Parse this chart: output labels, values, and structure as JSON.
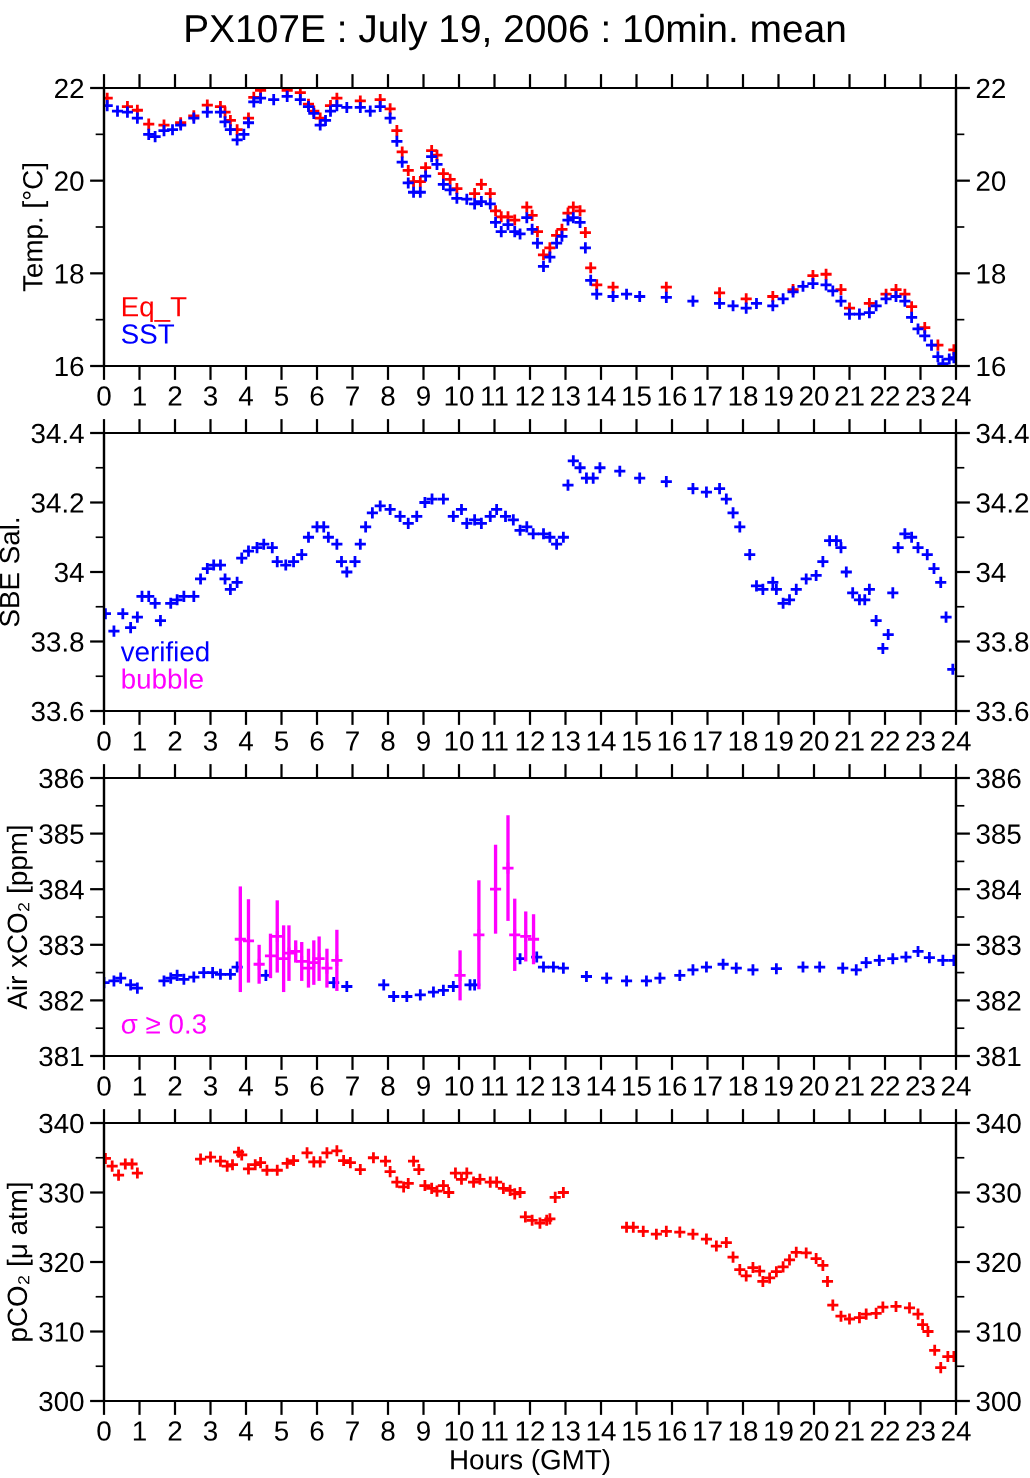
{
  "chart_data": [
    {
      "type": "scatter",
      "title": "PX107E : July 19, 2006 : 10min. mean",
      "ylabel": "Temp. [°C]",
      "marker": "cross",
      "legend": "bottom left",
      "grid": false,
      "xlim": [
        0,
        24
      ],
      "xticks": [
        0,
        1,
        2,
        3,
        4,
        5,
        6,
        7,
        8,
        9,
        10,
        11,
        12,
        13,
        14,
        15,
        16,
        17,
        18,
        19,
        20,
        21,
        22,
        23,
        24
      ],
      "ylim": [
        16,
        22
      ],
      "yticks": [
        16,
        18,
        20,
        22
      ],
      "y2lim": [
        16,
        22
      ],
      "y2ticks": [
        16,
        18,
        20,
        22
      ],
      "series": [
        {
          "name": "Eq_T",
          "color": "#ff0000",
          "x": [
            0.09,
            0.66,
            0.94,
            1.26,
            1.69,
            2.16,
            2.53,
            2.91,
            3.28,
            3.41,
            3.56,
            3.75,
            4.07,
            4.22,
            4.41,
            5.16,
            5.53,
            5.76,
            5.91,
            6.09,
            6.38,
            6.56,
            7.22,
            7.78,
            8.06,
            8.25,
            8.4,
            8.57,
            8.72,
            8.91,
            9.06,
            9.23,
            9.38,
            9.56,
            9.75,
            9.94,
            10.44,
            10.63,
            10.88,
            11.03,
            11.19,
            11.38,
            11.57,
            11.91,
            12.06,
            12.21,
            12.38,
            12.56,
            12.75,
            12.9,
            13.07,
            13.22,
            13.41,
            13.56,
            13.71,
            13.88,
            14.34,
            15.84,
            17.34,
            18.09,
            18.84,
            19.41,
            19.97,
            20.34,
            20.76,
            21.0,
            21.56,
            22.03,
            22.31,
            22.56,
            22.75,
            23.12,
            23.49,
            23.94
          ],
          "values": [
            21.78,
            21.6,
            21.52,
            21.22,
            21.2,
            21.25,
            21.4,
            21.63,
            21.6,
            21.48,
            21.3,
            21.1,
            21.35,
            21.8,
            21.95,
            21.95,
            21.9,
            21.65,
            21.5,
            21.35,
            21.62,
            21.78,
            21.72,
            21.75,
            21.55,
            21.08,
            20.62,
            20.22,
            19.98,
            19.98,
            20.28,
            20.65,
            20.55,
            20.15,
            20.03,
            19.83,
            19.72,
            19.92,
            19.72,
            19.35,
            19.22,
            19.22,
            19.15,
            19.43,
            19.25,
            18.9,
            18.4,
            18.55,
            18.82,
            18.95,
            19.3,
            19.43,
            19.35,
            18.88,
            18.12,
            17.75,
            17.7,
            17.7,
            17.58,
            17.45,
            17.5,
            17.65,
            17.95,
            17.98,
            17.65,
            17.25,
            17.35,
            17.55,
            17.65,
            17.55,
            17.28,
            16.83,
            16.45,
            16.35
          ]
        },
        {
          "name": "SST",
          "color": "#0000ff",
          "x": [
            0.09,
            0.38,
            0.66,
            0.94,
            1.26,
            1.44,
            1.69,
            1.93,
            2.16,
            2.53,
            2.91,
            3.28,
            3.41,
            3.56,
            3.75,
            3.94,
            4.07,
            4.22,
            4.41,
            4.78,
            5.16,
            5.53,
            5.76,
            5.91,
            6.09,
            6.24,
            6.38,
            6.56,
            6.84,
            7.22,
            7.5,
            7.78,
            8.06,
            8.25,
            8.4,
            8.57,
            8.72,
            8.91,
            9.06,
            9.23,
            9.38,
            9.56,
            9.75,
            9.94,
            10.22,
            10.44,
            10.63,
            10.88,
            11.03,
            11.19,
            11.38,
            11.57,
            11.72,
            11.91,
            12.06,
            12.21,
            12.38,
            12.56,
            12.75,
            12.9,
            13.07,
            13.22,
            13.41,
            13.56,
            13.71,
            13.88,
            14.34,
            14.72,
            15.09,
            15.84,
            16.59,
            17.34,
            17.72,
            18.09,
            18.38,
            18.84,
            19.13,
            19.41,
            19.69,
            19.97,
            20.34,
            20.53,
            20.76,
            21.0,
            21.28,
            21.56,
            21.75,
            22.03,
            22.31,
            22.56,
            22.75,
            22.93,
            23.12,
            23.31,
            23.49,
            23.63,
            23.81,
            23.94
          ],
          "values": [
            21.62,
            21.5,
            21.48,
            21.35,
            21.0,
            20.95,
            21.08,
            21.1,
            21.2,
            21.35,
            21.48,
            21.48,
            21.27,
            21.1,
            20.88,
            21.0,
            21.25,
            21.7,
            21.78,
            21.75,
            21.82,
            21.75,
            21.6,
            21.45,
            21.2,
            21.3,
            21.5,
            21.62,
            21.58,
            21.58,
            21.5,
            21.6,
            21.35,
            20.85,
            20.4,
            19.95,
            19.75,
            19.75,
            20.1,
            20.52,
            20.35,
            19.92,
            19.8,
            19.62,
            19.6,
            19.5,
            19.55,
            19.5,
            19.1,
            18.9,
            19.05,
            18.9,
            18.85,
            19.2,
            18.95,
            18.65,
            18.15,
            18.35,
            18.65,
            18.8,
            19.15,
            19.2,
            19.1,
            18.55,
            17.85,
            17.55,
            17.5,
            17.55,
            17.5,
            17.48,
            17.4,
            17.35,
            17.3,
            17.25,
            17.35,
            17.3,
            17.45,
            17.6,
            17.72,
            17.78,
            17.75,
            17.62,
            17.4,
            17.12,
            17.12,
            17.15,
            17.3,
            17.45,
            17.5,
            17.4,
            17.05,
            16.8,
            16.65,
            16.45,
            16.2,
            16.05,
            16.15,
            16.18
          ]
        }
      ]
    },
    {
      "type": "scatter",
      "ylabel": "SBE Sal.",
      "marker": "cross",
      "legend": "bottom left",
      "grid": false,
      "xlim": [
        0,
        24
      ],
      "xticks": [
        0,
        1,
        2,
        3,
        4,
        5,
        6,
        7,
        8,
        9,
        10,
        11,
        12,
        13,
        14,
        15,
        16,
        17,
        18,
        19,
        20,
        21,
        22,
        23,
        24
      ],
      "ylim": [
        33.6,
        34.4
      ],
      "yticks": [
        33.6,
        33.8,
        34,
        34.2,
        34.4
      ],
      "y2lim": [
        33.6,
        34.4
      ],
      "y2ticks": [
        33.6,
        33.8,
        34,
        34.2,
        34.4
      ],
      "series": [
        {
          "name": "verified",
          "color": "#0000ff",
          "x": [
            0.04,
            0.28,
            0.53,
            0.75,
            0.94,
            1.07,
            1.26,
            1.44,
            1.59,
            1.88,
            2.06,
            2.25,
            2.53,
            2.72,
            2.91,
            3.09,
            3.28,
            3.41,
            3.56,
            3.75,
            3.88,
            4.07,
            4.31,
            4.5,
            4.74,
            4.88,
            5.12,
            5.34,
            5.57,
            5.76,
            6.0,
            6.19,
            6.32,
            6.56,
            6.69,
            6.84,
            7.07,
            7.22,
            7.37,
            7.56,
            7.78,
            8.06,
            8.34,
            8.57,
            8.81,
            9.04,
            9.24,
            9.56,
            9.84,
            10.07,
            10.22,
            10.44,
            10.63,
            10.88,
            11.06,
            11.31,
            11.53,
            11.72,
            11.91,
            12.09,
            12.38,
            12.56,
            12.75,
            12.94,
            13.07,
            13.22,
            13.41,
            13.59,
            13.78,
            13.97,
            14.53,
            15.09,
            15.84,
            16.59,
            16.97,
            17.34,
            17.53,
            17.72,
            17.91,
            18.19,
            18.38,
            18.56,
            18.84,
            18.94,
            19.13,
            19.31,
            19.5,
            19.78,
            20.06,
            20.25,
            20.44,
            20.63,
            20.76,
            20.91,
            21.09,
            21.28,
            21.43,
            21.56,
            21.75,
            21.94,
            22.09,
            22.22,
            22.37,
            22.56,
            22.75,
            22.93,
            23.19,
            23.38,
            23.57,
            23.72,
            23.91
          ],
          "values": [
            33.88,
            33.83,
            33.88,
            33.84,
            33.87,
            33.93,
            33.93,
            33.91,
            33.86,
            33.91,
            33.92,
            33.93,
            33.93,
            33.98,
            34.01,
            34.02,
            34.02,
            33.98,
            33.95,
            33.97,
            34.04,
            34.06,
            34.07,
            34.08,
            34.07,
            34.03,
            34.02,
            34.03,
            34.05,
            34.1,
            34.13,
            34.13,
            34.1,
            34.08,
            34.03,
            34.0,
            34.03,
            34.08,
            34.13,
            34.17,
            34.19,
            34.18,
            34.16,
            34.14,
            34.16,
            34.2,
            34.21,
            34.21,
            34.16,
            34.18,
            34.14,
            34.15,
            34.14,
            34.16,
            34.18,
            34.16,
            34.15,
            34.12,
            34.13,
            34.11,
            34.11,
            34.1,
            34.08,
            34.1,
            34.25,
            34.32,
            34.3,
            34.27,
            34.27,
            34.3,
            34.29,
            34.27,
            34.26,
            34.24,
            34.23,
            34.24,
            34.21,
            34.17,
            34.13,
            34.05,
            33.96,
            33.95,
            33.97,
            33.95,
            33.91,
            33.92,
            33.95,
            33.98,
            33.99,
            34.03,
            34.09,
            34.09,
            34.07,
            34.0,
            33.94,
            33.92,
            33.92,
            33.95,
            33.86,
            33.78,
            33.82,
            33.94,
            34.07,
            34.11,
            34.1,
            34.07,
            34.05,
            34.01,
            33.97,
            33.87,
            33.72
          ]
        },
        {
          "name": "bubble",
          "color": "#ff00ff"
        }
      ]
    },
    {
      "type": "scatter",
      "ylabel": "Air xCO₂ [ppm]",
      "marker": "cross",
      "legend": "bottom left",
      "grid": false,
      "xlim": [
        0,
        24
      ],
      "xticks": [
        0,
        1,
        2,
        3,
        4,
        5,
        6,
        7,
        8,
        9,
        10,
        11,
        12,
        13,
        14,
        15,
        16,
        17,
        18,
        19,
        20,
        21,
        22,
        23,
        24
      ],
      "ylim": [
        381,
        386
      ],
      "yticks": [
        381,
        382,
        383,
        384,
        385,
        386
      ],
      "y2lim": [
        381,
        386
      ],
      "y2ticks": [
        381,
        382,
        383,
        384,
        385,
        386
      ],
      "series": [
        {
          "color": "#0000ff",
          "x": [
            0.0,
            0.28,
            0.47,
            0.75,
            0.94,
            1.69,
            1.88,
            2.06,
            2.25,
            2.53,
            2.81,
            3.06,
            3.28,
            3.56,
            3.75,
            4.56,
            6.47,
            6.84,
            7.88,
            8.16,
            8.53,
            8.91,
            9.28,
            9.56,
            9.84,
            10.31,
            10.44,
            11.72,
            12.19,
            12.38,
            12.66,
            12.94,
            13.59,
            14.16,
            14.72,
            15.28,
            15.66,
            16.22,
            16.59,
            16.97,
            17.44,
            17.81,
            18.28,
            18.94,
            19.69,
            20.16,
            20.81,
            21.19,
            21.47,
            21.84,
            22.22,
            22.59,
            22.93,
            23.25,
            23.63,
            23.94
          ],
          "values": [
            382.32,
            382.35,
            382.4,
            382.28,
            382.22,
            382.35,
            382.4,
            382.45,
            382.38,
            382.42,
            382.5,
            382.5,
            382.47,
            382.47,
            382.6,
            382.45,
            382.32,
            382.25,
            382.28,
            382.07,
            382.07,
            382.1,
            382.15,
            382.18,
            382.25,
            382.28,
            382.28,
            382.75,
            382.78,
            382.6,
            382.6,
            382.58,
            382.43,
            382.4,
            382.35,
            382.35,
            382.4,
            382.45,
            382.55,
            382.6,
            382.65,
            382.58,
            382.55,
            382.57,
            382.6,
            382.6,
            382.58,
            382.55,
            382.68,
            382.72,
            382.75,
            382.78,
            382.88,
            382.77,
            382.72,
            382.72
          ]
        },
        {
          "name": "σ ≥ 0.3",
          "color": "#ff00ff",
          "x": [
            3.84,
            4.07,
            4.37,
            4.69,
            4.88,
            5.06,
            5.21,
            5.4,
            5.57,
            5.76,
            5.91,
            6.06,
            6.28,
            6.56,
            10.03,
            10.56,
            11.03,
            11.38,
            11.57,
            11.88,
            12.1
          ],
          "values": [
            383.1,
            383.07,
            382.65,
            382.8,
            383.15,
            382.75,
            382.85,
            382.88,
            382.7,
            382.58,
            382.68,
            382.75,
            382.58,
            382.72,
            382.45,
            383.18,
            384.0,
            384.38,
            383.18,
            383.15,
            383.1
          ],
          "errors": [
            0.95,
            0.75,
            0.35,
            0.4,
            0.65,
            0.6,
            0.5,
            0.2,
            0.35,
            0.35,
            0.4,
            0.4,
            0.35,
            0.55,
            0.45,
            0.98,
            0.8,
            0.95,
            0.65,
            0.45,
            0.45
          ]
        }
      ]
    },
    {
      "type": "scatter",
      "ylabel": "pCO₂ [μ atm]",
      "xlabel": "Hours (GMT)",
      "marker": "cross",
      "grid": false,
      "xlim": [
        0,
        24
      ],
      "xticks": [
        0,
        1,
        2,
        3,
        4,
        5,
        6,
        7,
        8,
        9,
        10,
        11,
        12,
        13,
        14,
        15,
        16,
        17,
        18,
        19,
        20,
        21,
        22,
        23,
        24
      ],
      "ylim": [
        300,
        340
      ],
      "yticks": [
        300,
        310,
        320,
        330,
        340
      ],
      "y2lim": [
        300,
        340
      ],
      "y2ticks": [
        300,
        310,
        320,
        330,
        340
      ],
      "series": [
        {
          "color": "#ff0000",
          "x": [
            0.04,
            0.23,
            0.41,
            0.6,
            0.79,
            0.94,
            2.72,
            3.0,
            3.28,
            3.47,
            3.62,
            3.79,
            3.88,
            4.07,
            4.26,
            4.41,
            4.59,
            4.88,
            5.16,
            5.34,
            5.72,
            5.91,
            6.09,
            6.28,
            6.56,
            6.75,
            6.94,
            7.22,
            7.59,
            7.93,
            8.06,
            8.25,
            8.44,
            8.57,
            8.72,
            8.87,
            9.04,
            9.23,
            9.38,
            9.56,
            9.71,
            9.9,
            10.07,
            10.22,
            10.41,
            10.59,
            10.88,
            11.06,
            11.25,
            11.44,
            11.57,
            11.72,
            11.87,
            12.06,
            12.28,
            12.47,
            12.56,
            12.71,
            12.94,
            14.72,
            14.91,
            15.19,
            15.56,
            15.84,
            16.22,
            16.59,
            16.97,
            17.25,
            17.53,
            17.72,
            17.91,
            18.09,
            18.28,
            18.47,
            18.56,
            18.75,
            18.94,
            19.13,
            19.31,
            19.5,
            19.78,
            20.06,
            20.25,
            20.38,
            20.53,
            20.76,
            21.0,
            21.28,
            21.47,
            21.75,
            21.94,
            22.31,
            22.69,
            22.93,
            23.06,
            23.21,
            23.4,
            23.57,
            23.77,
            23.94
          ],
          "values": [
            334.9,
            333.8,
            332.5,
            334.1,
            334.1,
            332.8,
            334.8,
            335.1,
            334.5,
            333.8,
            334.0,
            335.8,
            335.4,
            333.4,
            334.0,
            334.3,
            333.2,
            333.2,
            334.2,
            334.6,
            335.7,
            334.4,
            334.4,
            335.7,
            336.0,
            334.6,
            334.3,
            333.3,
            335.0,
            334.5,
            333.0,
            331.5,
            330.8,
            331.3,
            334.5,
            333.3,
            331.0,
            330.6,
            330.2,
            331.0,
            330.0,
            332.8,
            331.9,
            332.8,
            331.5,
            331.9,
            331.5,
            331.5,
            330.6,
            330.3,
            329.8,
            330.0,
            326.5,
            326.0,
            325.6,
            326.0,
            326.2,
            329.3,
            330.0,
            325.0,
            325.0,
            324.4,
            324.0,
            324.4,
            324.3,
            324.0,
            323.3,
            322.3,
            322.8,
            320.7,
            318.9,
            318.0,
            319.2,
            318.7,
            317.2,
            317.7,
            318.6,
            319.3,
            320.3,
            321.4,
            321.3,
            320.5,
            319.5,
            317.2,
            313.8,
            312.2,
            311.8,
            312.0,
            312.5,
            312.6,
            313.5,
            313.6,
            313.4,
            312.5,
            311.0,
            310.0,
            307.3,
            304.8,
            306.4,
            306.4
          ]
        }
      ]
    }
  ]
}
